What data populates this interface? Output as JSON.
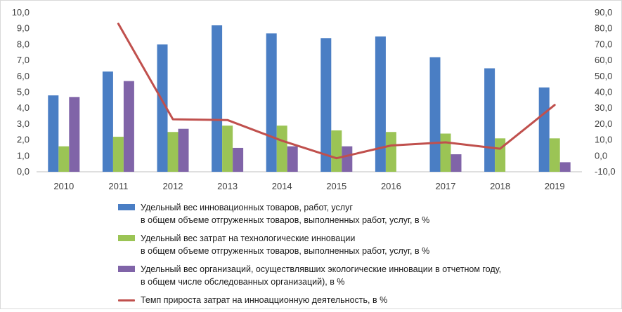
{
  "chart_data": {
    "type": "bar",
    "categories": [
      "2010",
      "2011",
      "2012",
      "2013",
      "2014",
      "2015",
      "2016",
      "2017",
      "2018",
      "2019"
    ],
    "left_axis": {
      "min": 0,
      "max": 10,
      "step": 1,
      "tick_labels": [
        "0,0",
        "1,0",
        "2,0",
        "3,0",
        "4,0",
        "5,0",
        "6,0",
        "7,0",
        "8,0",
        "9,0",
        "10,0"
      ]
    },
    "right_axis": {
      "min": -10,
      "max": 90,
      "step": 10,
      "tick_labels": [
        "-10,0",
        "0,0",
        "10,0",
        "20,0",
        "30,0",
        "40,0",
        "50,0",
        "60,0",
        "70,0",
        "80,0",
        "90,0"
      ]
    },
    "series": [
      {
        "name_line1": "Удельный вес инновационных товаров, работ, услуг",
        "name_line2": "в общем объеме отгруженных товаров, выполненных работ, услуг, в %",
        "type": "bar",
        "axis": "left",
        "color": "#4a7ec4",
        "values": [
          4.8,
          6.3,
          8.0,
          9.2,
          8.7,
          8.4,
          8.5,
          7.2,
          6.5,
          5.3
        ]
      },
      {
        "name_line1": "Удельный вес затрат на технологические инновации",
        "name_line2": "в общем объеме отгруженных товаров, выполненных работ, услуг, в %",
        "type": "bar",
        "axis": "left",
        "color": "#9bc455",
        "values": [
          1.6,
          2.2,
          2.5,
          2.9,
          2.9,
          2.6,
          2.5,
          2.4,
          2.1,
          2.1
        ]
      },
      {
        "name_line1": "Удельный вес организаций, осуществлявших экологические инновации в отчетном году,",
        "name_line2": "в общем числе обследованных организаций), в %",
        "type": "bar",
        "axis": "left",
        "color": "#8064a8",
        "values": [
          4.7,
          5.7,
          2.7,
          1.5,
          1.6,
          1.6,
          null,
          1.1,
          null,
          0.6
        ]
      },
      {
        "name_line1": "Темп прироста затрат на инноацционную деятельность, в %",
        "name_line2": "",
        "type": "line",
        "axis": "right",
        "color": "#c0504d",
        "values": [
          null,
          83.0,
          23.0,
          22.5,
          9.5,
          -1.5,
          6.5,
          8.5,
          4.5,
          32.0
        ]
      }
    ],
    "legend_position": "bottom",
    "grid": false
  }
}
